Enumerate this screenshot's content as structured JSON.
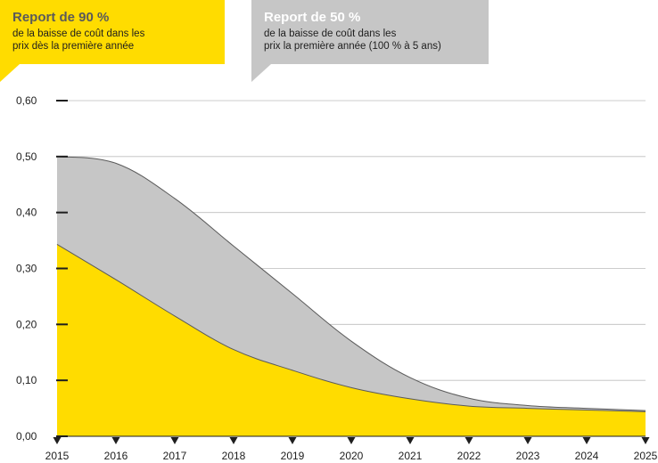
{
  "callouts": {
    "yellow": {
      "title": "Report de 90 %",
      "line1": "de la baisse de coût dans les",
      "line2": "prix dès la première année"
    },
    "grey": {
      "title": "Report de 50 %",
      "line1": "de la baisse de coût dans les",
      "line2": "prix la première année (100 % à 5 ans)"
    }
  },
  "colors": {
    "yellow": "#ffdc00",
    "grey": "#c6c6c6",
    "line": "#5a5a5a",
    "gridline": "#bdbdbd",
    "axis": "#1e1e1e"
  },
  "chart_data": {
    "type": "area",
    "title": "",
    "xlabel": "",
    "ylabel": "",
    "x": [
      2015,
      2016,
      2017,
      2018,
      2019,
      2020,
      2021,
      2022,
      2023,
      2024,
      2025
    ],
    "yticks": [
      "0,00",
      "0,10",
      "0,20",
      "0,30",
      "0,40",
      "0,50",
      "0,60"
    ],
    "ylim": [
      0,
      0.6
    ],
    "grid": true,
    "series": [
      {
        "name": "Report de 50 %",
        "color": "#c6c6c6",
        "values": [
          0.5,
          0.488,
          0.425,
          0.34,
          0.255,
          0.17,
          0.105,
          0.068,
          0.055,
          0.05,
          0.046
        ]
      },
      {
        "name": "Report de 90 %",
        "color": "#ffdc00",
        "values": [
          0.343,
          0.28,
          0.215,
          0.155,
          0.118,
          0.087,
          0.067,
          0.054,
          0.05,
          0.047,
          0.044
        ]
      }
    ]
  }
}
